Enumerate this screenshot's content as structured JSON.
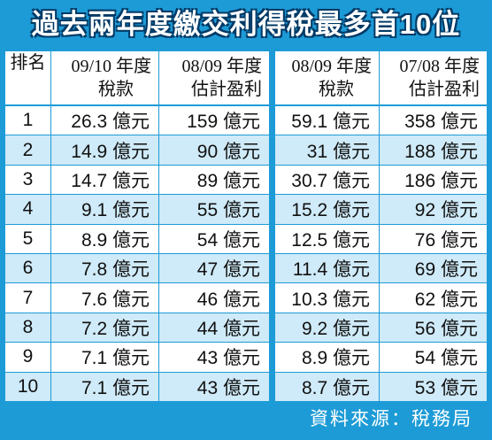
{
  "header": {
    "title": "過去兩年度繳交利得稅最多首10位"
  },
  "table": {
    "columns": [
      [
        "排名"
      ],
      [
        "09/10 年度",
        "稅款"
      ],
      [
        "08/09 年度",
        "估計盈利"
      ],
      [
        "08/09 年度",
        "稅款"
      ],
      [
        "07/08 年度",
        "估計盈利"
      ]
    ],
    "rows": [
      [
        "1",
        "26.3 億元",
        "159 億元",
        "59.1 億元",
        "358 億元"
      ],
      [
        "2",
        "14.9 億元",
        "90 億元",
        "31 億元",
        "188 億元"
      ],
      [
        "3",
        "14.7 億元",
        "89 億元",
        "30.7 億元",
        "186 億元"
      ],
      [
        "4",
        "9.1 億元",
        "55 億元",
        "15.2 億元",
        "92 億元"
      ],
      [
        "5",
        "8.9 億元",
        "54 億元",
        "12.5 億元",
        "76 億元"
      ],
      [
        "6",
        "7.8 億元",
        "47 億元",
        "11.4 億元",
        "69 億元"
      ],
      [
        "7",
        "7.6 億元",
        "46 億元",
        "10.3 億元",
        "62 億元"
      ],
      [
        "8",
        "7.2 億元",
        "44 億元",
        "9.2 億元",
        "56 億元"
      ],
      [
        "9",
        "7.1 億元",
        "43 億元",
        "8.9 億元",
        "54 億元"
      ],
      [
        "10",
        "7.1 億元",
        "43 億元",
        "8.7 億元",
        "53 億元"
      ]
    ]
  },
  "footer": {
    "source": "資料來源：稅務局"
  }
}
